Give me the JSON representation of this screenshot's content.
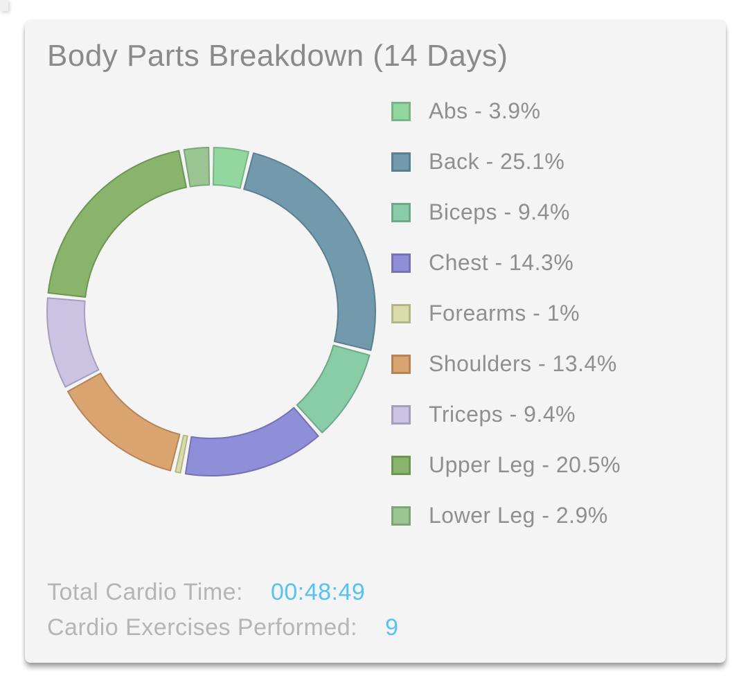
{
  "title": "Body Parts Breakdown (14 Days)",
  "chart_data": {
    "type": "pie",
    "subtype": "donut",
    "title": "Body Parts Breakdown (14 Days)",
    "legend_position": "right",
    "start_angle_deg": 0,
    "direction": "clockwise",
    "inner_radius_ratio": 0.77,
    "segments": [
      {
        "label": "Abs",
        "pct": 3.9,
        "display": "Abs - 3.9%",
        "fill": "#92d89e",
        "stroke": "#79b386"
      },
      {
        "label": "Back",
        "pct": 25.1,
        "display": "Back - 25.1%",
        "fill": "#7399ac",
        "stroke": "#5b7f91"
      },
      {
        "label": "Biceps",
        "pct": 9.4,
        "display": "Biceps - 9.4%",
        "fill": "#89cca8",
        "stroke": "#6da887"
      },
      {
        "label": "Chest",
        "pct": 14.3,
        "display": "Chest - 14.3%",
        "fill": "#8f8ed8",
        "stroke": "#7472b4"
      },
      {
        "label": "Forearms",
        "pct": 1.0,
        "display": "Forearms - 1%",
        "fill": "#d9dcaa",
        "stroke": "#b1b886"
      },
      {
        "label": "Shoulders",
        "pct": 13.4,
        "display": "Shoulders - 13.4%",
        "fill": "#d9a470",
        "stroke": "#b58356"
      },
      {
        "label": "Triceps",
        "pct": 9.4,
        "display": "Triceps - 9.4%",
        "fill": "#cbc3e2",
        "stroke": "#a59dbe"
      },
      {
        "label": "Upper Leg",
        "pct": 20.5,
        "display": "Upper Leg - 20.5%",
        "fill": "#8ab36c",
        "stroke": "#6d9553"
      },
      {
        "label": "Lower Leg",
        "pct": 2.9,
        "display": "Lower Leg - 2.9%",
        "fill": "#9bc593",
        "stroke": "#7da577"
      }
    ]
  },
  "stats": {
    "total_cardio_time_label": "Total Cardio Time:",
    "total_cardio_time_value": "00:48:49",
    "cardio_exercises_label": "Cardio Exercises Performed:",
    "cardio_exercises_value": "9"
  },
  "colors": {
    "page_bg": "#ffffff",
    "card_bg": "#f4f4f5",
    "title_text": "#8a8a8a",
    "legend_text": "#8f8f8f",
    "stats_label_text": "#b5b5b5",
    "stats_value_text": "#56c2f1"
  }
}
